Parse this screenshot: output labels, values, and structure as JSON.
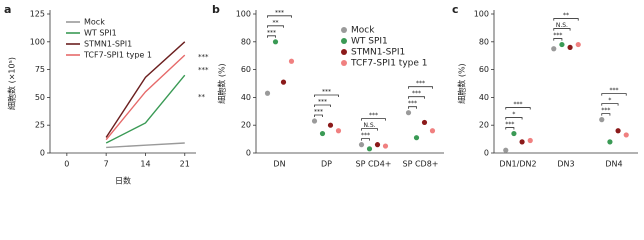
{
  "chart_data": [
    {
      "type": "line",
      "label": "a",
      "y_label": "細胞数 (×10⁵)",
      "x_label": "日数",
      "x": [
        7,
        14,
        21
      ],
      "xlim": [
        -3,
        23
      ],
      "xticks": [
        0,
        7,
        14,
        21
      ],
      "ylim": [
        0,
        125
      ],
      "yticks": [
        0,
        25,
        50,
        75,
        100,
        125
      ],
      "series": [
        {
          "name": "Mock",
          "color": "#9a9a9a",
          "values": [
            5,
            7,
            9
          ]
        },
        {
          "name": "WT SPI1",
          "color": "#3a9a55",
          "values": [
            9,
            27,
            70
          ]
        },
        {
          "name": "STMN1-SPI1",
          "color": "#6b1f1f",
          "values": [
            14,
            68,
            100
          ]
        },
        {
          "name": "TCF7-SPI1 type 1",
          "color": "#e66a6a",
          "values": [
            12,
            55,
            88
          ]
        }
      ],
      "annotations": [
        "***",
        "***",
        "**"
      ]
    },
    {
      "type": "dot",
      "label": "b",
      "y_label": "細胞数 (%)",
      "categories": [
        "DN",
        "DP",
        "SP CD4+",
        "SP CD8+"
      ],
      "ylim": [
        0,
        100
      ],
      "yticks": [
        0,
        20,
        40,
        60,
        80,
        100
      ],
      "series": [
        {
          "name": "Mock",
          "color": "#9a9a9a",
          "values": [
            43,
            23,
            6,
            29
          ]
        },
        {
          "name": "WT SPI1",
          "color": "#3a9a55",
          "values": [
            80,
            14,
            3,
            11
          ]
        },
        {
          "name": "STMN1-SPI1",
          "color": "#8b1a1a",
          "values": [
            51,
            20,
            6,
            22
          ]
        },
        {
          "name": "TCF7-SPI1 type 1",
          "color": "#f08080",
          "values": [
            66,
            16,
            5,
            16
          ]
        }
      ],
      "significance": [
        [
          "***",
          "**",
          "***"
        ],
        [
          "***",
          "***",
          "***"
        ],
        [
          "***",
          "N.S.",
          "***"
        ],
        [
          "***",
          "***",
          "***"
        ]
      ]
    },
    {
      "type": "dot",
      "label": "c",
      "y_label": "細胞数 (%)",
      "categories": [
        "DN1/DN2",
        "DN3",
        "DN4"
      ],
      "ylim": [
        0,
        100
      ],
      "yticks": [
        0,
        20,
        40,
        60,
        80,
        100
      ],
      "series": [
        {
          "color": "#9a9a9a",
          "values": [
            2,
            75,
            24
          ]
        },
        {
          "color": "#3a9a55",
          "values": [
            14,
            78,
            8
          ]
        },
        {
          "color": "#8b1a1a",
          "values": [
            8,
            76,
            16
          ]
        },
        {
          "color": "#f08080",
          "values": [
            9,
            78,
            13
          ]
        }
      ],
      "significance": [
        [
          "***",
          "*",
          "***"
        ],
        [
          "***",
          "N.S.",
          "**"
        ],
        [
          "***",
          "*",
          "***"
        ]
      ]
    }
  ]
}
